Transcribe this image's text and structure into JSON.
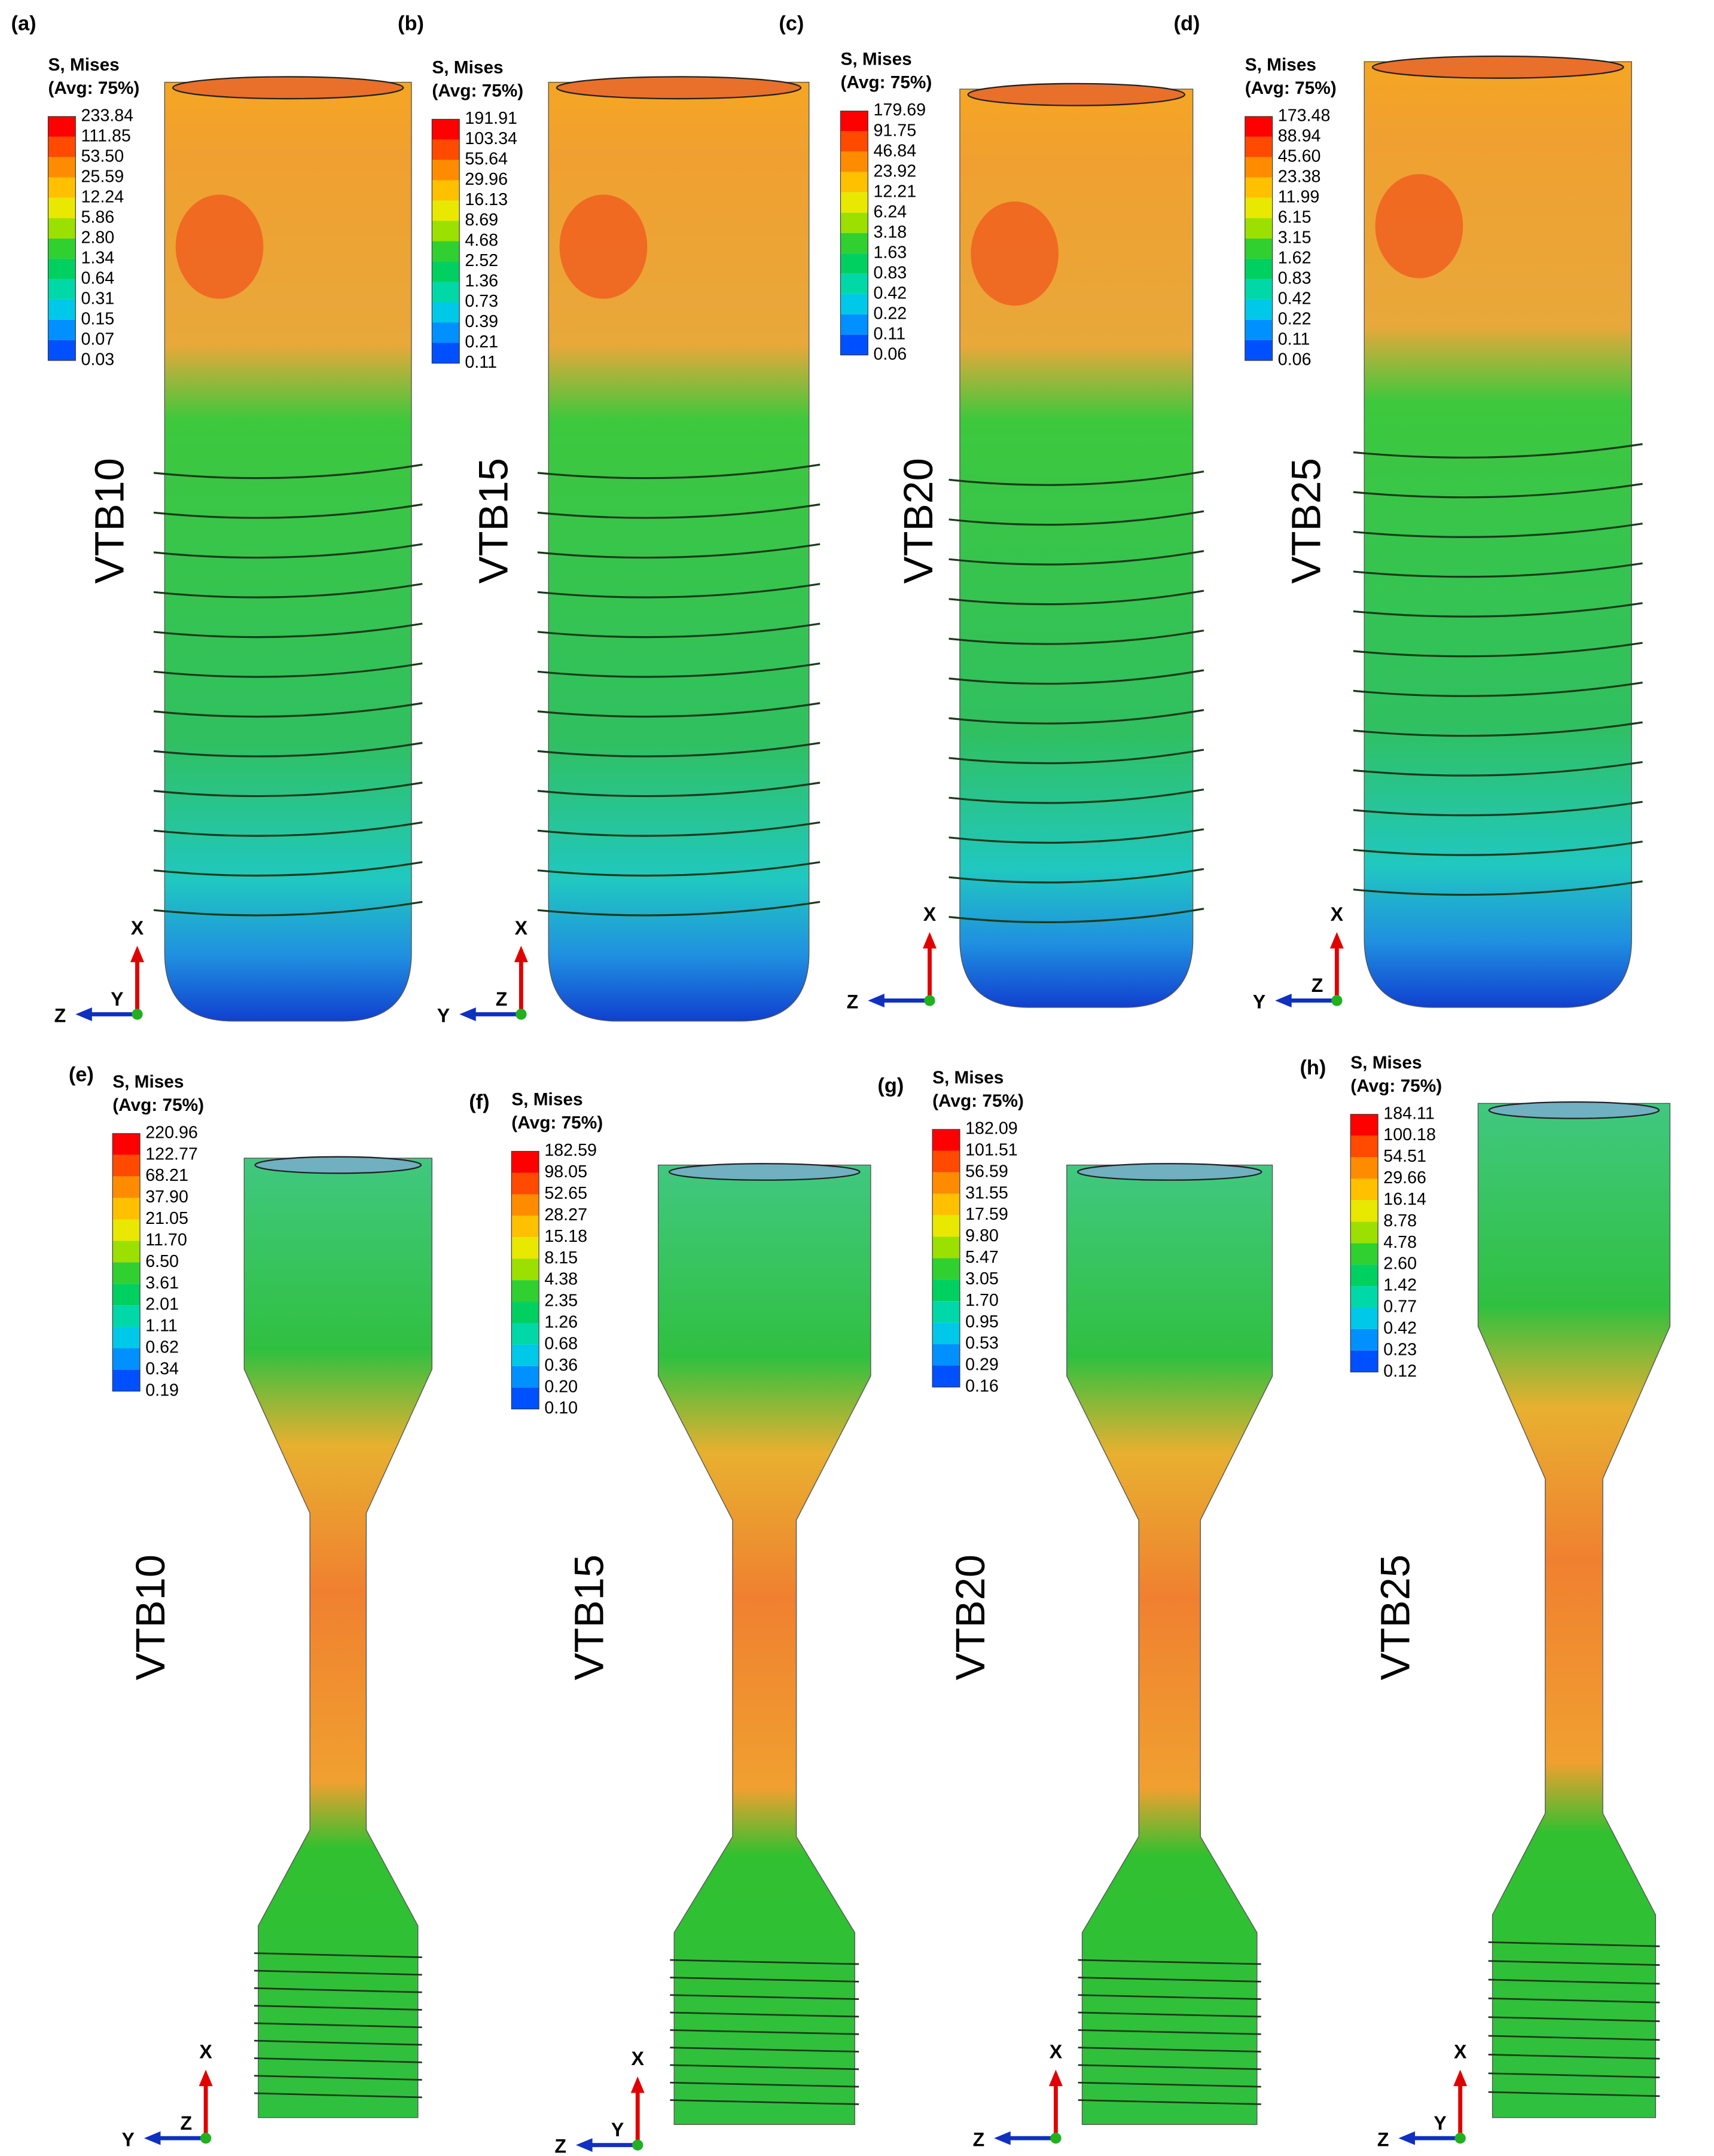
{
  "panels": [
    {
      "label": "(a)",
      "legend": {
        "title": "S, Mises",
        "subtitle": "(Avg: 75%)",
        "values": [
          "233.84",
          "111.85",
          "53.50",
          "25.59",
          "12.24",
          "5.86",
          "2.80",
          "1.34",
          "0.64",
          "0.31",
          "0.15",
          "0.07",
          "0.03"
        ]
      },
      "name": "VTB10",
      "triad": [
        "X",
        "Z",
        "Y"
      ]
    },
    {
      "label": "(b)",
      "legend": {
        "title": "S, Mises",
        "subtitle": "(Avg: 75%)",
        "values": [
          "191.91",
          "103.34",
          "55.64",
          "29.96",
          "16.13",
          "8.69",
          "4.68",
          "2.52",
          "1.36",
          "0.73",
          "0.39",
          "0.21",
          "0.11"
        ]
      },
      "name": "VTB15",
      "triad": [
        "X",
        "Y",
        "Z"
      ]
    },
    {
      "label": "(c)",
      "legend": {
        "title": "S, Mises",
        "subtitle": "(Avg: 75%)",
        "values": [
          "179.69",
          "91.75",
          "46.84",
          "23.92",
          "12.21",
          "6.24",
          "3.18",
          "1.63",
          "0.83",
          "0.42",
          "0.22",
          "0.11",
          "0.06"
        ]
      },
      "name": "VTB20",
      "triad": [
        "X",
        "Z"
      ]
    },
    {
      "label": "(d)",
      "legend": {
        "title": "S, Mises",
        "subtitle": "(Avg: 75%)",
        "values": [
          "173.48",
          "88.94",
          "45.60",
          "23.38",
          "11.99",
          "6.15",
          "3.15",
          "1.62",
          "0.83",
          "0.42",
          "0.22",
          "0.11",
          "0.06"
        ]
      },
      "name": "VTB25",
      "triad": [
        "X",
        "Y",
        "Z"
      ]
    },
    {
      "label": "(e)",
      "legend": {
        "title": "S, Mises",
        "subtitle": "(Avg: 75%)",
        "values": [
          "220.96",
          "122.77",
          "68.21",
          "37.90",
          "21.05",
          "11.70",
          "6.50",
          "3.61",
          "2.01",
          "1.11",
          "0.62",
          "0.34",
          "0.19"
        ]
      },
      "name": "VTB10",
      "triad": [
        "X",
        "Y",
        "Z"
      ]
    },
    {
      "label": "(f)",
      "legend": {
        "title": "S, Mises",
        "subtitle": "(Avg: 75%)",
        "values": [
          "182.59",
          "98.05",
          "52.65",
          "28.27",
          "15.18",
          "8.15",
          "4.38",
          "2.35",
          "1.26",
          "0.68",
          "0.36",
          "0.20",
          "0.10"
        ]
      },
      "name": "VTB15",
      "triad": [
        "X",
        "Z",
        "Y"
      ]
    },
    {
      "label": "(g)",
      "legend": {
        "title": "S, Mises",
        "subtitle": "(Avg: 75%)",
        "values": [
          "182.09",
          "101.51",
          "56.59",
          "31.55",
          "17.59",
          "9.80",
          "5.47",
          "3.05",
          "1.70",
          "0.95",
          "0.53",
          "0.29",
          "0.16"
        ]
      },
      "name": "VTB20",
      "triad": [
        "X",
        "Z"
      ]
    },
    {
      "label": "(h)",
      "legend": {
        "title": "S, Mises",
        "subtitle": "(Avg: 75%)",
        "values": [
          "184.11",
          "100.18",
          "54.51",
          "29.66",
          "16.14",
          "8.78",
          "4.78",
          "2.60",
          "1.42",
          "0.77",
          "0.42",
          "0.23",
          "0.12"
        ]
      },
      "name": "VTB25",
      "triad": [
        "X",
        "Z",
        "Y"
      ]
    }
  ]
}
